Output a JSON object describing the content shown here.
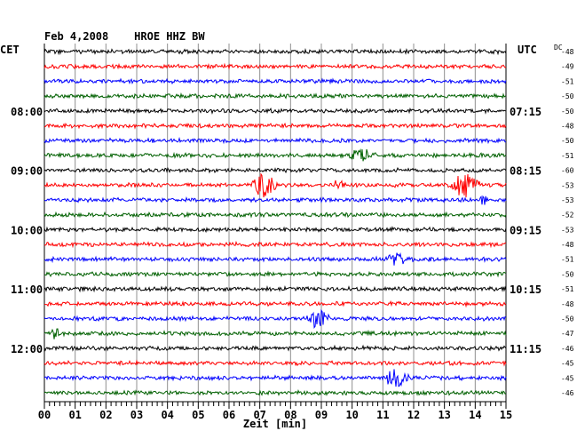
{
  "header": {
    "title": "Feb 4,2008    HROE HHZ BW",
    "left_tz": "CET",
    "right_tz": "UTC",
    "dc_label": "DC"
  },
  "colors": {
    "trace_cycle": [
      "#000000",
      "#ff0000",
      "#0000ff",
      "#006000"
    ],
    "grid": "#909090",
    "frame": "#000000"
  },
  "chart_data": {
    "type": "line",
    "title": "Feb 4,2008    HROE HHZ BW",
    "xlabel": "Zeit [min]",
    "xlim": [
      0,
      15
    ],
    "x_ticks": [
      "00",
      "01",
      "02",
      "03",
      "04",
      "05",
      "06",
      "07",
      "08",
      "09",
      "10",
      "11",
      "12",
      "13",
      "14",
      "15"
    ],
    "row_count": 24,
    "left_hour_labels": [
      {
        "row": 4,
        "text": "08:00"
      },
      {
        "row": 8,
        "text": "09:00"
      },
      {
        "row": 12,
        "text": "10:00"
      },
      {
        "row": 16,
        "text": "11:00"
      },
      {
        "row": 20,
        "text": "12:00"
      }
    ],
    "right_hour_labels": [
      {
        "row": 4,
        "text": "07:15"
      },
      {
        "row": 8,
        "text": "08:15"
      },
      {
        "row": 12,
        "text": "09:15"
      },
      {
        "row": 16,
        "text": "10:15"
      },
      {
        "row": 20,
        "text": "11:15"
      }
    ],
    "dc_offsets": [
      "-48",
      "-49",
      "-51",
      "-50",
      "-50",
      "-48",
      "-50",
      "-51",
      "-60",
      "-53",
      "-53",
      "-52",
      "-53",
      "-48",
      "-51",
      "-50",
      "-51",
      "-48",
      "-50",
      "-47",
      "-46",
      "-45",
      "-45",
      "-46"
    ],
    "events": [
      {
        "row": 7,
        "start_min": 9.8,
        "end_min": 10.8,
        "amp": 0.45
      },
      {
        "row": 9,
        "start_min": 6.7,
        "end_min": 7.6,
        "amp": 1.0
      },
      {
        "row": 9,
        "start_min": 13.2,
        "end_min": 14.2,
        "amp": 1.0
      },
      {
        "row": 9,
        "start_min": 9.2,
        "end_min": 9.8,
        "amp": 0.3
      },
      {
        "row": 10,
        "start_min": 14.1,
        "end_min": 14.4,
        "amp": 0.35
      },
      {
        "row": 14,
        "start_min": 11.1,
        "end_min": 11.8,
        "amp": 0.55
      },
      {
        "row": 18,
        "start_min": 8.5,
        "end_min": 9.3,
        "amp": 0.85
      },
      {
        "row": 19,
        "start_min": 0.2,
        "end_min": 0.5,
        "amp": 0.4
      },
      {
        "row": 22,
        "start_min": 11.0,
        "end_min": 11.9,
        "amp": 0.8
      }
    ]
  }
}
